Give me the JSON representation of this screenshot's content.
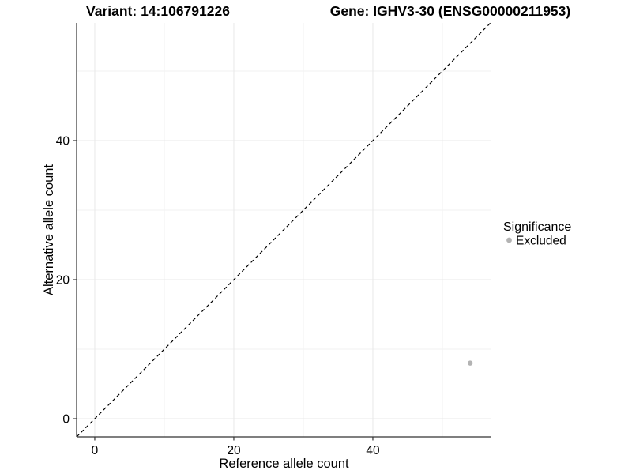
{
  "header": {
    "title_left": "Variant: 14:106791226",
    "title_right": "Gene: IGHV3-30 (ENSG00000211953)"
  },
  "chart_data": {
    "type": "scatter",
    "title": "Variant: 14:106791226   Gene: IGHV3-30 (ENSG00000211953)",
    "xlabel": "Reference allele count",
    "ylabel": "Alternative allele count",
    "xlim": [
      -2.61,
      57.05
    ],
    "ylim": [
      -2.61,
      56.93
    ],
    "x_ticks": [
      0,
      20,
      40
    ],
    "y_ticks": [
      0,
      20,
      40
    ],
    "x_gridlines_major": [
      0,
      20,
      40
    ],
    "x_gridlines_minor": [
      10,
      30,
      50
    ],
    "y_gridlines_major": [
      0,
      20,
      40
    ],
    "y_gridlines_minor": [
      10,
      30,
      50
    ],
    "grid": true,
    "legend_position": "right",
    "legend": {
      "title": "Significance",
      "items": [
        {
          "label": "Excluded",
          "color": "#b3b3b3"
        }
      ]
    },
    "series": [
      {
        "name": "Excluded",
        "color": "#b3b3b3",
        "points": [
          {
            "x": 54,
            "y": 8
          }
        ]
      }
    ],
    "reference_line": {
      "kind": "identity",
      "slope": 1,
      "intercept": 0,
      "linetype": "dashed",
      "color": "#000000"
    },
    "colors": {
      "grid_major": "#e8e8e8",
      "grid_minor": "#f1f1f1",
      "axis_line": "#333333",
      "background": "#ffffff"
    }
  }
}
